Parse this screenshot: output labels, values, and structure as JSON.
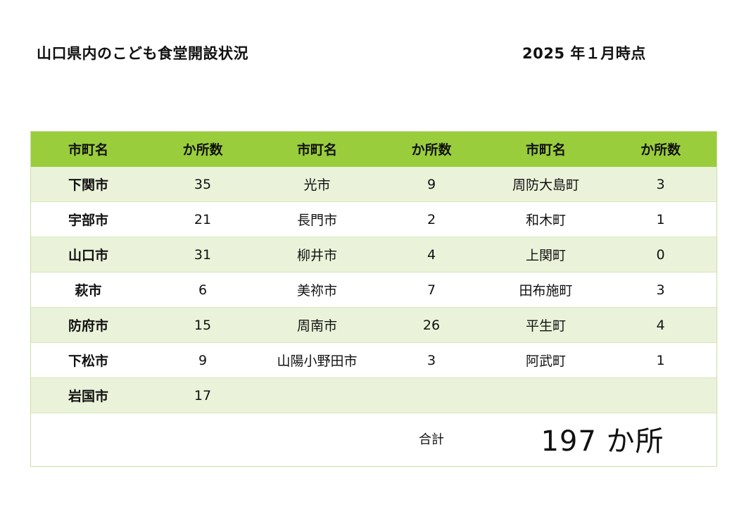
{
  "title": "山口県内のこども食堂開設状況",
  "as_of": "2025 年１月時点",
  "headers": [
    "市町名",
    "か所数",
    "市町名",
    "か所数",
    "市町名",
    "か所数"
  ],
  "rows": [
    {
      "c1": "下関市",
      "n1": "35",
      "c2": "光市",
      "n2": "9",
      "c3": "周防大島町",
      "n3": "3"
    },
    {
      "c1": "宇部市",
      "n1": "21",
      "c2": "長門市",
      "n2": "2",
      "c3": "和木町",
      "n3": "1"
    },
    {
      "c1": "山口市",
      "n1": "31",
      "c2": "柳井市",
      "n2": "4",
      "c3": "上関町",
      "n3": "0"
    },
    {
      "c1": "萩市",
      "n1": "6",
      "c2": "美祢市",
      "n2": "7",
      "c3": "田布施町",
      "n3": "3"
    },
    {
      "c1": "防府市",
      "n1": "15",
      "c2": "周南市",
      "n2": "26",
      "c3": "平生町",
      "n3": "4"
    },
    {
      "c1": "下松市",
      "n1": "9",
      "c2": "山陽小野田市",
      "n2": "3",
      "c3": "阿武町",
      "n3": "1"
    },
    {
      "c1": "岩国市",
      "n1": "17",
      "c2": "",
      "n2": "",
      "c3": "",
      "n3": ""
    }
  ],
  "total": {
    "label": "合計",
    "value": "197 か所"
  }
}
